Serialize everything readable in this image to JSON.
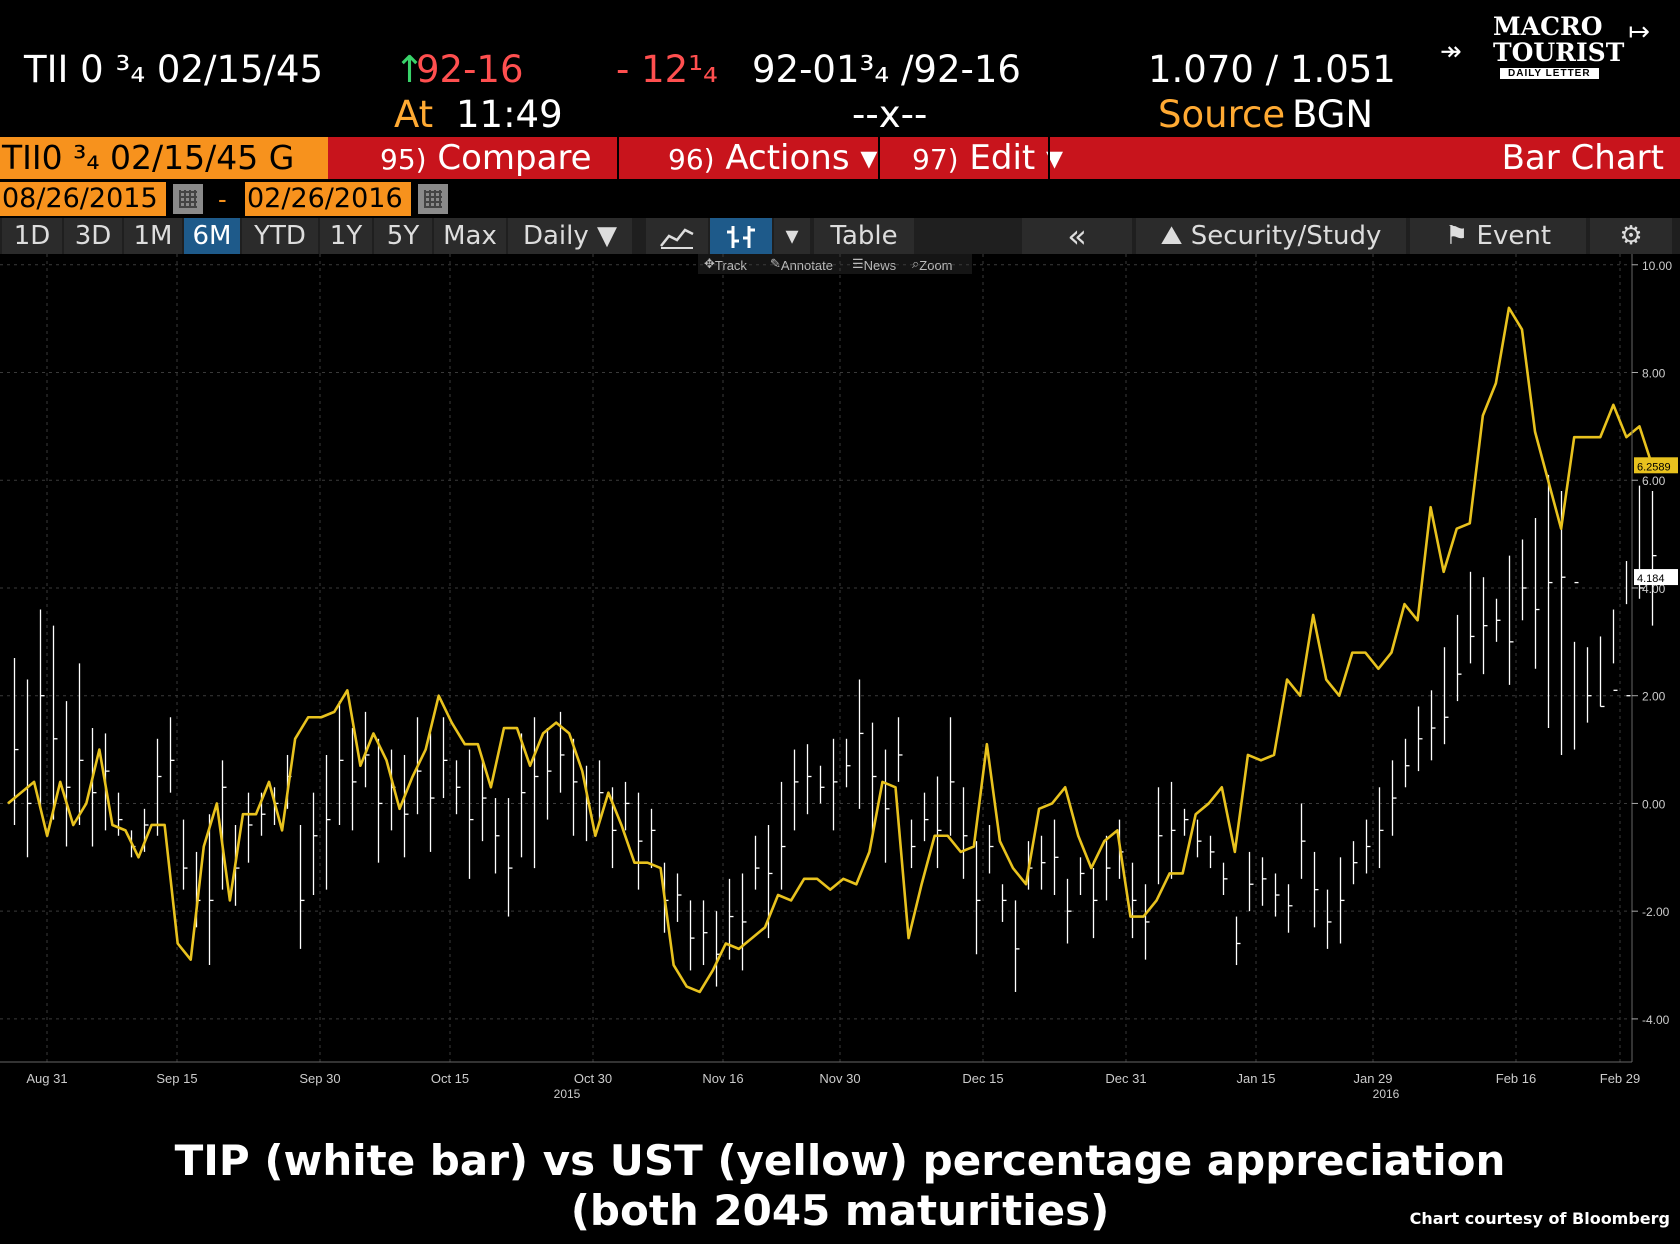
{
  "quote": {
    "ticker": "TII 0 ³₄ 02/15/45",
    "arrow": "↑",
    "last": "92-16",
    "change": "- 12¹₄",
    "bid_ask": "92-01³₄ /92-16",
    "yields": "1.070 / 1.051",
    "time_label": "At",
    "time": "11:49",
    "mid": "--x--",
    "source_label": "Source",
    "source": "BGN"
  },
  "logo": {
    "line1": "MACRO",
    "line2": "TOURIST",
    "tagline": "DAILY LETTER"
  },
  "menubar": {
    "security": "TII0 ³₄ 02/15/45 G",
    "compare_num": "95)",
    "compare": "Compare",
    "actions_num": "96)",
    "actions": "Actions ▾",
    "edit_num": "97)",
    "edit": "Edit ▾",
    "chart_type": "Bar Chart"
  },
  "range": {
    "start": "08/26/2015",
    "dash": "-",
    "end": "02/26/2016"
  },
  "toolbar": {
    "periods": [
      "1D",
      "3D",
      "1M",
      "6M",
      "YTD",
      "1Y",
      "5Y",
      "Max"
    ],
    "selected_period": "6M",
    "frequency": "Daily ▼",
    "table": "Table",
    "collapse": "«",
    "security_study": "Security/Study",
    "event": "Event",
    "sub": {
      "track": "Track",
      "annotate": "Annotate",
      "news": "News",
      "zoom": "Zoom"
    }
  },
  "colors": {
    "ust": "#e8c21e",
    "tip": "#ffffff",
    "background": "#000000",
    "grid": "#3a3a3a",
    "security_box": "#f7921d",
    "menu_red": "#c8141c"
  },
  "chart_data": {
    "type": "line",
    "ylim": [
      -4.8,
      10.2
    ],
    "yticks": [
      -4,
      -2,
      0,
      2,
      4,
      6,
      8,
      10
    ],
    "ytick_labels": [
      "-4.00",
      "-2.00",
      "0.00",
      "2.00",
      "4.00",
      "6.00",
      "8.00",
      "10.00"
    ],
    "xlim": [
      0,
      124
    ],
    "xticks": [
      {
        "x": 3,
        "label": "Aug 31"
      },
      {
        "x": 13,
        "label": "Sep 15"
      },
      {
        "x": 24,
        "label": "Sep 30"
      },
      {
        "x": 34,
        "label": "Oct 15"
      },
      {
        "x": 45,
        "label": "Oct 30"
      },
      {
        "x": 55,
        "label": "Nov 16"
      },
      {
        "x": 64,
        "label": "Nov 30"
      },
      {
        "x": 75,
        "label": "Dec 15"
      },
      {
        "x": 86,
        "label": "Dec 31"
      },
      {
        "x": 96,
        "label": "Jan 15"
      },
      {
        "x": 105,
        "label": "Jan 29"
      },
      {
        "x": 116,
        "label": "Feb 16"
      },
      {
        "x": 124,
        "label": "Feb 29"
      }
    ],
    "year_labels": [
      {
        "x": 43,
        "label": "2015"
      },
      {
        "x": 106,
        "label": "2016"
      }
    ],
    "series": [
      {
        "type": "line",
        "values": [
          0.0,
          0.2,
          0.4,
          -0.6,
          0.4,
          -0.4,
          0.0,
          1.0,
          -0.4,
          -0.5,
          -1.0,
          -0.4,
          -0.4,
          -2.6,
          -2.9,
          -0.8,
          0.0,
          -1.8,
          -0.2,
          -0.2,
          0.4,
          -0.5,
          1.2,
          1.6,
          1.6,
          1.7,
          2.1,
          0.7,
          1.3,
          0.8,
          -0.1,
          0.5,
          1.0,
          2.0,
          1.5,
          1.1,
          1.1,
          0.3,
          1.4,
          1.4,
          0.7,
          1.3,
          1.5,
          1.3,
          0.6,
          -0.6,
          0.2,
          -0.4,
          -1.1,
          -1.1,
          -1.2,
          -3.0,
          -3.4,
          -3.5,
          -3.1,
          -2.6,
          -2.7,
          -2.5,
          -2.3,
          -1.7,
          -1.8,
          -1.4,
          -1.4,
          -1.6,
          -1.4,
          -1.5,
          -0.9,
          0.4,
          0.3,
          -2.5,
          -1.5,
          -0.6,
          -0.6,
          -0.9,
          -0.8,
          1.1,
          -0.7,
          -1.2,
          -1.5,
          -0.1,
          0.0,
          0.3,
          -0.6,
          -1.2,
          -0.7,
          -0.5,
          -2.1,
          -2.1,
          -1.8,
          -1.3,
          -1.3,
          -0.2,
          0.0,
          0.3,
          -0.9,
          0.9,
          0.8,
          0.9,
          2.3,
          2.0,
          3.5,
          2.3,
          2.0,
          2.8,
          2.8,
          2.5,
          2.8,
          3.7,
          3.4,
          5.5,
          4.3,
          5.1,
          5.2,
          7.2,
          7.8,
          9.2,
          8.8,
          6.9,
          6.0,
          5.1,
          6.8,
          6.8,
          6.8,
          7.4,
          6.8,
          7.0,
          6.2589
        ],
        "last_label": "6.2589"
      },
      {
        "type": "bar",
        "lows": [
          -0.4,
          -1.0,
          -0.1,
          -0.3,
          -0.8,
          -0.4,
          -0.8,
          -0.5,
          -0.6,
          -1.0,
          -0.9,
          -0.6,
          0.2,
          -1.6,
          -2.3,
          -3.0,
          -1.6,
          -1.9,
          -1.1,
          -0.6,
          -0.4,
          -0.1,
          -2.7,
          -1.7,
          -1.6,
          -0.4,
          -0.5,
          0.3,
          -1.1,
          -0.5,
          -1.0,
          -0.2,
          -0.9,
          0.1,
          -0.2,
          -1.4,
          -0.7,
          -1.3,
          -2.1,
          -1.0,
          -1.2,
          -0.3,
          0.2,
          -0.6,
          -0.7,
          -0.3,
          -1.2,
          -0.5,
          -1.6,
          -1.2,
          -2.4,
          -2.2,
          -3.1,
          -3.0,
          -3.4,
          -2.9,
          -3.1,
          -1.6,
          -2.5,
          -1.6,
          -0.5,
          -0.2,
          0.0,
          -0.5,
          0.3,
          -0.1,
          -0.6,
          -1.1,
          0.4,
          -1.2,
          -0.7,
          -1.2,
          -0.6,
          -1.4,
          -2.8,
          -1.3,
          -2.2,
          -3.5,
          -1.6,
          -1.6,
          -1.7,
          -2.6,
          -1.7,
          -2.5,
          -1.8,
          -1.4,
          -2.5,
          -2.9,
          -1.5,
          -1.4,
          -0.6,
          -1.0,
          -1.2,
          -1.7,
          -3.0,
          -2.0,
          -1.9,
          -2.1,
          -2.4,
          -1.4,
          -2.3,
          -2.7,
          -2.6,
          -1.5,
          -1.3,
          -1.2,
          -0.6,
          0.3,
          0.6,
          0.8,
          1.1,
          1.9,
          2.6,
          2.4,
          3.0,
          2.2,
          3.4,
          2.5,
          1.4,
          0.9,
          1.0,
          1.5,
          1.8,
          3.6,
          3.7,
          3.8,
          3.3
        ],
        "highs": [
          2.7,
          2.3,
          3.6,
          3.3,
          1.9,
          2.6,
          1.4,
          1.3,
          0.2,
          -0.5,
          -0.1,
          1.2,
          1.6,
          -0.3,
          -0.9,
          -0.2,
          0.8,
          -0.4,
          0.2,
          0.2,
          0.3,
          0.9,
          -0.4,
          0.2,
          0.9,
          1.9,
          1.4,
          1.7,
          1.2,
          1.0,
          0.9,
          1.6,
          1.3,
          1.6,
          0.8,
          1.0,
          0.8,
          0.1,
          0.1,
          1.3,
          1.6,
          1.4,
          1.7,
          1.2,
          0.7,
          0.8,
          0.3,
          0.4,
          0.2,
          -0.1,
          -1.1,
          -1.3,
          -1.8,
          -1.8,
          -2.0,
          -1.4,
          -1.3,
          -0.6,
          -0.4,
          0.4,
          1.0,
          1.1,
          0.7,
          1.2,
          1.2,
          2.3,
          1.5,
          1.0,
          1.6,
          -0.3,
          0.2,
          0.5,
          1.6,
          0.3,
          -0.7,
          -0.4,
          -1.5,
          -1.8,
          -0.7,
          -0.6,
          -0.3,
          -1.4,
          -1.0,
          -1.2,
          -0.6,
          -0.3,
          -1.1,
          -1.5,
          0.3,
          0.4,
          -0.1,
          -0.3,
          -0.6,
          -1.1,
          -2.1,
          -0.9,
          -1.0,
          -1.3,
          -1.5,
          0.0,
          -0.9,
          -1.6,
          -1.0,
          -0.7,
          -0.3,
          0.3,
          0.8,
          1.2,
          1.8,
          2.1,
          2.9,
          3.5,
          4.3,
          4.2,
          3.8,
          4.6,
          4.9,
          5.3,
          6.1,
          5.8,
          3.0,
          2.9,
          3.1,
          2.6,
          4.5,
          5.9,
          5.8,
          4.8
        ],
        "closes": [
          1.0,
          0.0,
          2.0,
          1.2,
          0.3,
          0.8,
          0.2,
          0.6,
          -0.3,
          -0.8,
          -0.4,
          0.5,
          0.8,
          -1.2,
          -1.8,
          -1.8,
          0.3,
          -1.2,
          -0.4,
          -0.2,
          0.0,
          0.5,
          -1.8,
          -0.6,
          -0.3,
          0.8,
          0.4,
          0.9,
          0.0,
          0.3,
          -0.2,
          0.6,
          0.1,
          0.8,
          0.3,
          -0.3,
          0.1,
          -0.6,
          -1.2,
          0.2,
          0.5,
          0.6,
          0.9,
          0.4,
          0.0,
          0.2,
          -0.5,
          0.0,
          -0.7,
          -0.5,
          -1.8,
          -1.7,
          -2.5,
          -2.4,
          -2.8,
          -2.1,
          -2.2,
          -1.2,
          -1.3,
          -0.8,
          0.4,
          0.5,
          0.3,
          0.4,
          0.7,
          1.3,
          0.5,
          -0.1,
          0.9,
          -0.8,
          -0.3,
          -0.5,
          0.4,
          -0.6,
          -1.8,
          -0.8,
          -1.8,
          -2.7,
          -1.2,
          -1.1,
          -1.0,
          -2.0,
          -1.3,
          -1.8,
          -1.2,
          -0.9,
          -1.8,
          -2.2,
          -0.6,
          -0.5,
          -0.3,
          -0.7,
          -0.9,
          -1.4,
          -2.6,
          -1.5,
          -1.4,
          -1.7,
          -1.9,
          -0.7,
          -1.6,
          -2.2,
          -1.8,
          -1.1,
          -0.8,
          -0.5,
          0.1,
          0.7,
          1.2,
          1.4,
          1.6,
          2.4,
          3.1,
          3.3,
          3.4,
          3.0,
          4.0,
          3.6,
          4.1,
          4.2,
          4.1,
          2.0,
          1.8,
          2.1,
          2.0,
          4.0,
          4.6,
          4.4,
          4.184
        ],
        "last_label": "4.184"
      }
    ]
  },
  "caption": {
    "line1": "TIP (white bar) vs UST (yellow) percentage appreciation",
    "line2": "(both 2045 maturities)",
    "credit": "Chart courtesy of Bloomberg"
  }
}
